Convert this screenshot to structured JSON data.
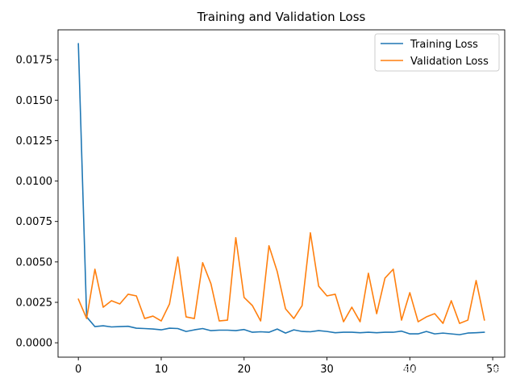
{
  "chart_data": {
    "type": "line",
    "title": "Training and Validation Loss",
    "xlabel": "",
    "ylabel": "",
    "xlim": [
      -2.45,
      51.45
    ],
    "ylim": [
      -0.00089,
      0.01935
    ],
    "x_ticks": [
      0,
      10,
      20,
      30,
      40,
      50
    ],
    "y_ticks": [
      0.0,
      0.0025,
      0.005,
      0.0075,
      0.01,
      0.0125,
      0.015,
      0.0175
    ],
    "y_tick_labels": [
      "0.0000",
      "0.0025",
      "0.0050",
      "0.0075",
      "0.0100",
      "0.0125",
      "0.0150",
      "0.0175"
    ],
    "legend_position": "top-right",
    "x": [
      0,
      1,
      2,
      3,
      4,
      5,
      6,
      7,
      8,
      9,
      10,
      11,
      12,
      13,
      14,
      15,
      16,
      17,
      18,
      19,
      20,
      21,
      22,
      23,
      24,
      25,
      26,
      27,
      28,
      29,
      30,
      31,
      32,
      33,
      34,
      35,
      36,
      37,
      38,
      39,
      40,
      41,
      42,
      43,
      44,
      45,
      46,
      47,
      48,
      49
    ],
    "series": [
      {
        "name": "Training Loss",
        "color": "#1f77b4",
        "values": [
          0.0185,
          0.0016,
          0.001,
          0.00105,
          0.00098,
          0.001,
          0.00102,
          0.0009,
          0.00088,
          0.00085,
          0.0008,
          0.0009,
          0.00088,
          0.0007,
          0.0008,
          0.00088,
          0.00075,
          0.00078,
          0.00078,
          0.00075,
          0.00082,
          0.00065,
          0.00068,
          0.00065,
          0.00085,
          0.0006,
          0.0008,
          0.0007,
          0.00068,
          0.00075,
          0.0007,
          0.00062,
          0.00065,
          0.00065,
          0.00062,
          0.00065,
          0.00062,
          0.00065,
          0.00065,
          0.00072,
          0.00055,
          0.00055,
          0.0007,
          0.00055,
          0.0006,
          0.00055,
          0.0005,
          0.0006,
          0.00062,
          0.00065
        ]
      },
      {
        "name": "Validation Loss",
        "color": "#ff7f0e",
        "values": [
          0.0027,
          0.0015,
          0.00455,
          0.0022,
          0.0026,
          0.0024,
          0.003,
          0.0029,
          0.0015,
          0.00165,
          0.00135,
          0.0024,
          0.0053,
          0.0016,
          0.0015,
          0.00495,
          0.00365,
          0.00135,
          0.0014,
          0.0065,
          0.0028,
          0.0023,
          0.00135,
          0.006,
          0.0044,
          0.0021,
          0.0015,
          0.0023,
          0.0068,
          0.0035,
          0.0029,
          0.003,
          0.0013,
          0.0022,
          0.0013,
          0.0043,
          0.0018,
          0.004,
          0.00455,
          0.0014,
          0.0031,
          0.0013,
          0.0016,
          0.0018,
          0.0012,
          0.0026,
          0.0012,
          0.0014,
          0.00385,
          0.0014
        ]
      }
    ]
  },
  "watermark": {
    "line1": "CSDN @别团等shy哥发育",
    "line2": "@稀土掘金技术社区"
  }
}
